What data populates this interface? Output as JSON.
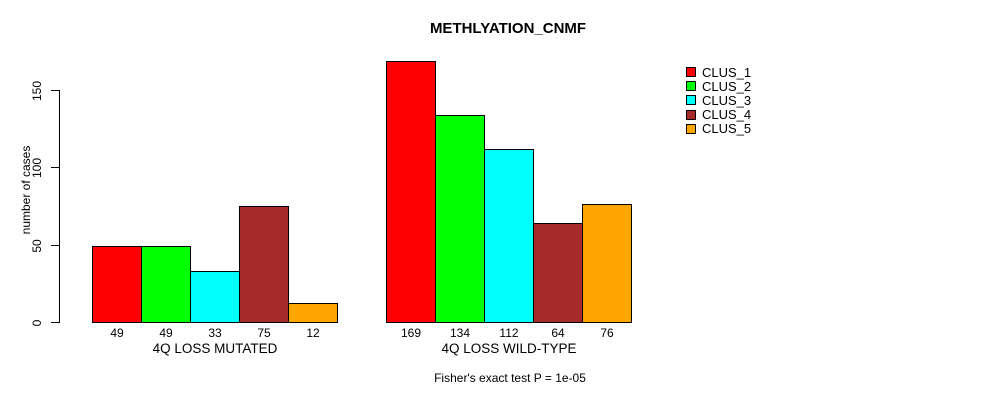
{
  "title": "METHLYATION_CNMF",
  "footer": "Fisher's exact test P = 1e-05",
  "chart_data": {
    "type": "bar",
    "title": "METHLYATION_CNMF",
    "xlabel": "",
    "ylabel": "number of cases",
    "ylim": [
      0,
      150
    ],
    "yticks": [
      0,
      50,
      100,
      150
    ],
    "grid": false,
    "legend_position": "right",
    "bar_value_labels": true,
    "categories": [
      "4Q LOSS MUTATED",
      "4Q LOSS WILD-TYPE"
    ],
    "series": [
      {
        "name": "CLUS_1",
        "color": "#FF0000",
        "values": [
          49,
          169
        ]
      },
      {
        "name": "CLUS_2",
        "color": "#00FF00",
        "values": [
          49,
          134
        ]
      },
      {
        "name": "CLUS_3",
        "color": "#00FFFF",
        "values": [
          33,
          112
        ]
      },
      {
        "name": "CLUS_4",
        "color": "#A52A2A",
        "values": [
          75,
          64
        ]
      },
      {
        "name": "CLUS_5",
        "color": "#FFA500",
        "values": [
          12,
          76
        ]
      }
    ],
    "annotation": "Fisher's exact test P = 1e-05"
  }
}
